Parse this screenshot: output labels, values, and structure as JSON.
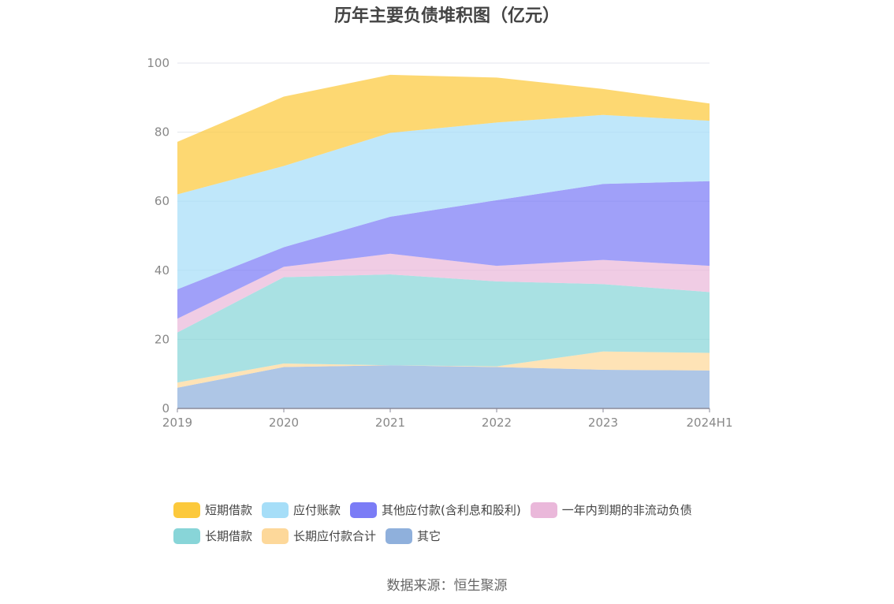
{
  "title": "历年主要负债堆积图（亿元）",
  "source": "数据来源：恒生聚源",
  "chart_data": {
    "type": "area",
    "stacked": true,
    "categories": [
      "2019",
      "2020",
      "2021",
      "2022",
      "2023",
      "2024H1"
    ],
    "ylim": [
      0,
      100
    ],
    "yticks": [
      0,
      20,
      40,
      60,
      80,
      100
    ],
    "grid": true,
    "legend_position": "bottom",
    "series": [
      {
        "name": "其它",
        "color": "#8fb0dc",
        "values": [
          6.0,
          12.0,
          12.5,
          12.0,
          11.2,
          11.0
        ]
      },
      {
        "name": "长期应付款合计",
        "color": "#fdd89a",
        "values": [
          1.5,
          1.0,
          0.0,
          0.2,
          5.3,
          5.1
        ]
      },
      {
        "name": "长期借款",
        "color": "#88d5d8",
        "values": [
          14.5,
          25.0,
          26.3,
          24.6,
          19.5,
          17.6
        ]
      },
      {
        "name": "一年内到期的非流动负债",
        "color": "#eab8da",
        "values": [
          4.0,
          3.0,
          6.0,
          4.5,
          7.0,
          7.6
        ]
      },
      {
        "name": "其他应付款(含利息和股利)",
        "color": "#7b7cf6",
        "values": [
          8.5,
          5.7,
          10.7,
          19.0,
          22.0,
          24.5
        ]
      },
      {
        "name": "应付账款",
        "color": "#a6def8",
        "values": [
          27.5,
          23.5,
          24.3,
          22.5,
          20.0,
          17.5
        ]
      },
      {
        "name": "短期借款",
        "color": "#fcc93c",
        "values": [
          15.2,
          20.1,
          16.8,
          13.0,
          7.5,
          5.0
        ]
      }
    ]
  },
  "legend_rows": [
    [
      {
        "label": "短期借款",
        "color": "#fcc93c"
      },
      {
        "label": "应付账款",
        "color": "#a6def8"
      },
      {
        "label": "其他应付款(含利息和股利)",
        "color": "#7b7cf6"
      },
      {
        "label": "一年内到期的非流动负债",
        "color": "#eab8da"
      }
    ],
    [
      {
        "label": "长期借款",
        "color": "#88d5d8"
      },
      {
        "label": "长期应付款合计",
        "color": "#fdd89a"
      },
      {
        "label": "其它",
        "color": "#8fb0dc"
      }
    ]
  ]
}
